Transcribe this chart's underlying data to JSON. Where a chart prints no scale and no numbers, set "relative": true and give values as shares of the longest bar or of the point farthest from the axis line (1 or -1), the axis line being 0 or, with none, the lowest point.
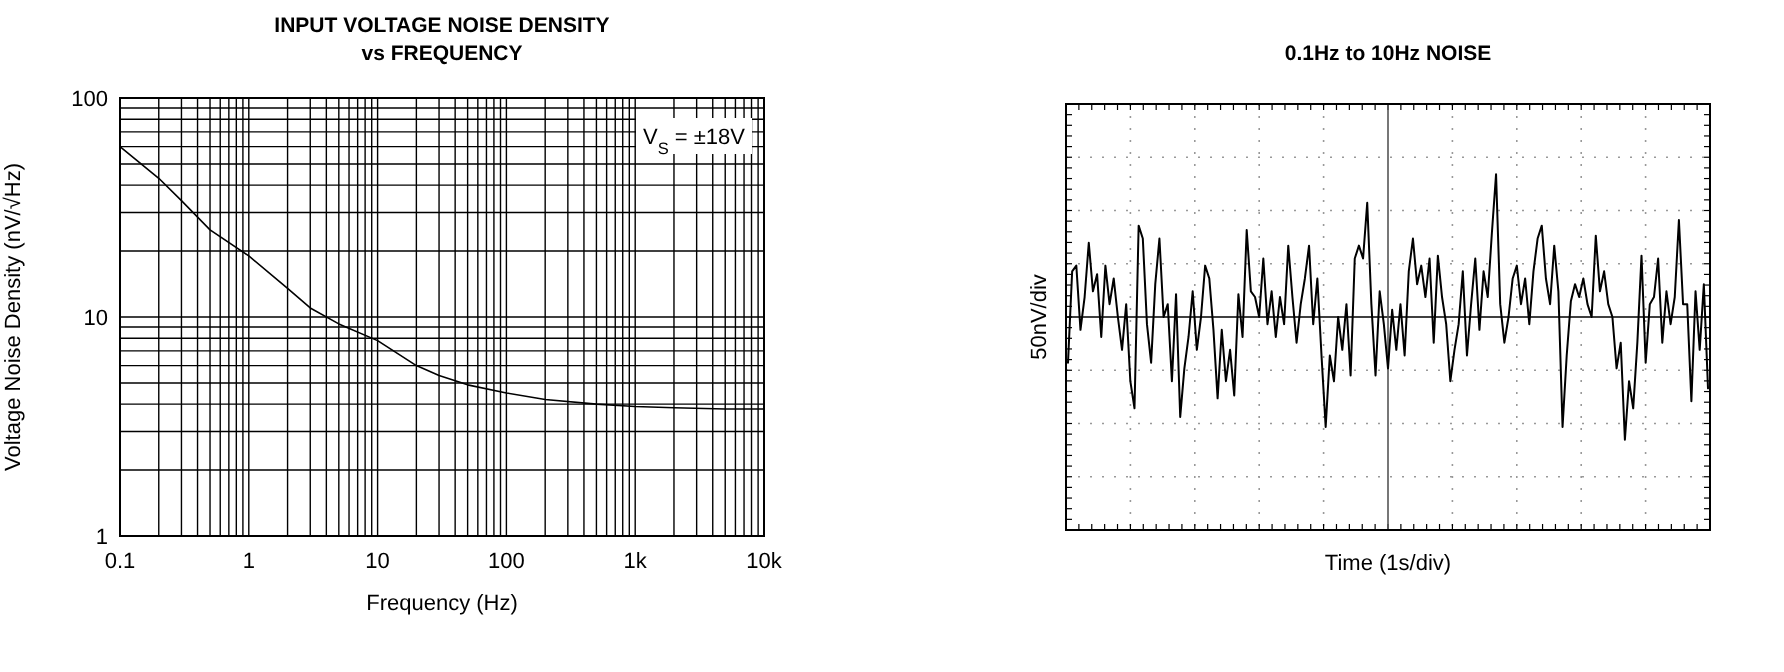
{
  "chart_data": [
    {
      "type": "line",
      "title": "INPUT VOLTAGE NOISE DENSITY\nvs FREQUENCY",
      "xlabel": "Frequency (Hz)",
      "ylabel": "Voltage Noise Density (nV/√Hz)",
      "log": "xy",
      "grid": true,
      "color": "#000000",
      "x": [
        0.1,
        0.2,
        0.3,
        0.5,
        1,
        2,
        3,
        5,
        10,
        20,
        30,
        50,
        100,
        200,
        500,
        1000,
        2000,
        5000,
        10000
      ],
      "values": [
        60,
        43,
        34,
        25,
        19,
        13.5,
        11,
        9.3,
        7.8,
        6,
        5.4,
        4.9,
        4.5,
        4.2,
        4,
        3.9,
        3.85,
        3.8,
        3.8
      ],
      "xlim": [
        0.1,
        10000
      ],
      "ylim": [
        1,
        100
      ],
      "xticks": [
        0.1,
        1,
        10,
        100,
        {
          "value": 1000,
          "label": "1k"
        },
        {
          "value": 10000,
          "label": "10k"
        }
      ],
      "yticks": [
        1,
        10,
        100
      ],
      "annotations": [
        "V$_{S}$ = ±18V"
      ]
    },
    {
      "type": "line",
      "title": "0.1Hz to 10Hz NOISE",
      "xlabel": "Time (1s/div)",
      "ylabel": "50nV/div",
      "relative": true,
      "grid": true,
      "color": "#000000",
      "categories": [
        null,
        null,
        null,
        null,
        null,
        null,
        null,
        null,
        null,
        null,
        null,
        null,
        null,
        null,
        null,
        null,
        null,
        null,
        null,
        null,
        null,
        null,
        null,
        null,
        null,
        null,
        null,
        null,
        null,
        null,
        null,
        null,
        null,
        null,
        null,
        null,
        null,
        null,
        null,
        null,
        null,
        null,
        null,
        null,
        null,
        null,
        null,
        null,
        null,
        null,
        null,
        null,
        null,
        null,
        null,
        null,
        null,
        null,
        null,
        null,
        null,
        null,
        null,
        null,
        null,
        null,
        null,
        null,
        null,
        null,
        null,
        null,
        null,
        null,
        null,
        null,
        null,
        null,
        null,
        null,
        null,
        null,
        null,
        null,
        null,
        null,
        null,
        null,
        null,
        null,
        null,
        null,
        null,
        null,
        null,
        null,
        null,
        null,
        null,
        null,
        null,
        null,
        null,
        null,
        null,
        null,
        null,
        null,
        null,
        null,
        null,
        null,
        null,
        null,
        null,
        null,
        null,
        null,
        null,
        null,
        null,
        null,
        null,
        null,
        null,
        null,
        null,
        null,
        null,
        null,
        null,
        null,
        null,
        null,
        null,
        null,
        null,
        null,
        null,
        null,
        null,
        null,
        null,
        null,
        null,
        null,
        null,
        null,
        null,
        null,
        null,
        null,
        null,
        null,
        null
      ],
      "values": [
        -0.32,
        0.32,
        0.36,
        -0.09,
        0.14,
        0.52,
        0.18,
        0.3,
        -0.14,
        0.36,
        0.09,
        0.27,
        0,
        -0.23,
        0.09,
        -0.45,
        -0.64,
        0.64,
        0.55,
        -0.05,
        -0.32,
        0.23,
        0.55,
        0,
        0.09,
        -0.45,
        0.16,
        -0.7,
        -0.36,
        -0.14,
        0.18,
        -0.23,
        0,
        0.36,
        0.27,
        -0.09,
        -0.57,
        -0.09,
        -0.45,
        -0.23,
        -0.55,
        0.16,
        -0.14,
        0.61,
        0.18,
        0.14,
        0,
        0.41,
        -0.05,
        0.18,
        -0.14,
        0.14,
        -0.05,
        0.5,
        0.14,
        -0.18,
        0.09,
        0.27,
        0.5,
        -0.05,
        0.27,
        -0.27,
        -0.77,
        -0.27,
        -0.45,
        0,
        -0.23,
        0.09,
        -0.41,
        0.41,
        0.5,
        0.41,
        0.8,
        0.09,
        -0.41,
        0.18,
        -0.05,
        -0.36,
        0.05,
        -0.23,
        0.09,
        -0.27,
        0.32,
        0.55,
        0.23,
        0.36,
        0.14,
        0.41,
        -0.18,
        0.43,
        0.14,
        -0.05,
        -0.45,
        -0.23,
        -0.05,
        0.32,
        -0.27,
        0.09,
        0.41,
        -0.09,
        0.32,
        0.14,
        0.59,
        1,
        0.09,
        -0.18,
        0,
        0.27,
        0.36,
        0.09,
        0.27,
        -0.05,
        0.32,
        0.55,
        0.64,
        0.27,
        0.09,
        0.5,
        0.18,
        -0.77,
        -0.27,
        0.11,
        0.23,
        0.14,
        0.27,
        0.09,
        0,
        0.57,
        0.18,
        0.32,
        0.09,
        0,
        -0.36,
        -0.18,
        -0.86,
        -0.45,
        -0.64,
        -0.18,
        0.43,
        -0.32,
        0.09,
        0.14,
        0.41,
        -0.18,
        0.18,
        -0.05,
        0.14,
        0.68,
        0.09,
        0.09,
        -0.59,
        0.18,
        -0.23,
        0.23,
        -0.5
      ]
    }
  ]
}
